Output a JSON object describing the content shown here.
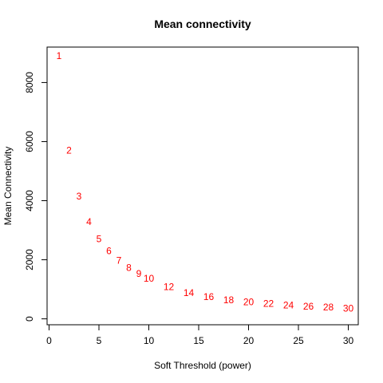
{
  "chart_data": {
    "type": "scatter",
    "title": "Mean connectivity",
    "xlabel": "Soft Threshold (power)",
    "ylabel": "Mean Connectivity",
    "xlim": [
      -0.2,
      31.0
    ],
    "ylim": [
      -200,
      9200
    ],
    "x_ticks": [
      0,
      5,
      10,
      15,
      20,
      25,
      30
    ],
    "y_ticks": [
      0,
      2000,
      4000,
      6000,
      8000
    ],
    "point_color": "#ff0000",
    "marker": "text-labels",
    "grid": false,
    "series": [
      {
        "x": [
          1,
          2,
          3,
          4,
          5,
          6,
          7,
          8,
          9,
          10,
          12,
          14,
          16,
          18,
          20,
          22,
          24,
          26,
          28,
          30
        ],
        "y": [
          8900,
          5700,
          4150,
          3280,
          2700,
          2300,
          1980,
          1730,
          1530,
          1370,
          1080,
          880,
          740,
          640,
          570,
          510,
          460,
          420,
          390,
          360
        ],
        "labels": [
          "1",
          "2",
          "3",
          "4",
          "5",
          "6",
          "7",
          "8",
          "9",
          "10",
          "12",
          "14",
          "16",
          "18",
          "20",
          "22",
          "24",
          "26",
          "28",
          "30"
        ]
      }
    ]
  }
}
